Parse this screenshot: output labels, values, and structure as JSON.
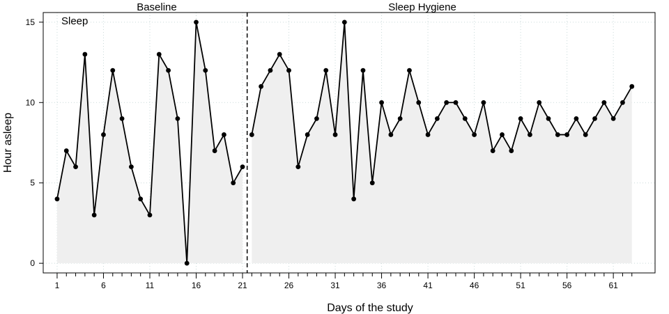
{
  "chart_data": {
    "type": "line",
    "title": "",
    "xlabel": "Days of the study",
    "ylabel": "Hour asleep",
    "panel_label": "Sleep",
    "phases": [
      {
        "name": "Baseline",
        "start": 1,
        "end": 21
      },
      {
        "name": "Sleep Hygiene",
        "start": 22,
        "end": 63
      }
    ],
    "phase_change_after": 21.5,
    "xlim": [
      -0.5,
      65.5
    ],
    "ylim": [
      -0.6,
      15.6
    ],
    "xticks": [
      1,
      6,
      11,
      16,
      21,
      26,
      31,
      36,
      41,
      46,
      51,
      56,
      61
    ],
    "yticks": [
      0,
      5,
      10,
      15
    ],
    "grid": true,
    "area_fill": "#efefef",
    "line_color": "#000000",
    "series": [
      {
        "x": [
          1,
          2,
          3,
          4,
          5,
          6,
          7,
          8,
          9,
          10,
          11,
          12,
          13,
          14,
          15,
          16,
          17,
          18,
          19,
          20,
          21
        ],
        "values": [
          4,
          7,
          6,
          13,
          3,
          8,
          12,
          9,
          6,
          4,
          3,
          13,
          12,
          9,
          0,
          15,
          12,
          7,
          8,
          5,
          6
        ]
      },
      {
        "x": [
          22,
          23,
          24,
          25,
          26,
          27,
          28,
          29,
          30,
          31,
          32,
          33,
          34,
          35,
          36,
          37,
          38,
          39,
          40,
          41,
          42,
          43,
          44,
          45,
          46,
          47,
          48,
          49,
          50,
          51,
          52,
          53,
          54,
          55,
          56,
          57,
          58,
          59,
          60,
          61,
          62,
          63
        ],
        "values": [
          8,
          11,
          12,
          13,
          12,
          6,
          8,
          9,
          12,
          8,
          15,
          4,
          12,
          5,
          10,
          8,
          9,
          12,
          10,
          8,
          9,
          10,
          10,
          9,
          8,
          10,
          7,
          8,
          7,
          9,
          8,
          10,
          9,
          8,
          8,
          9,
          8,
          9,
          10,
          9,
          10,
          11
        ]
      }
    ]
  }
}
